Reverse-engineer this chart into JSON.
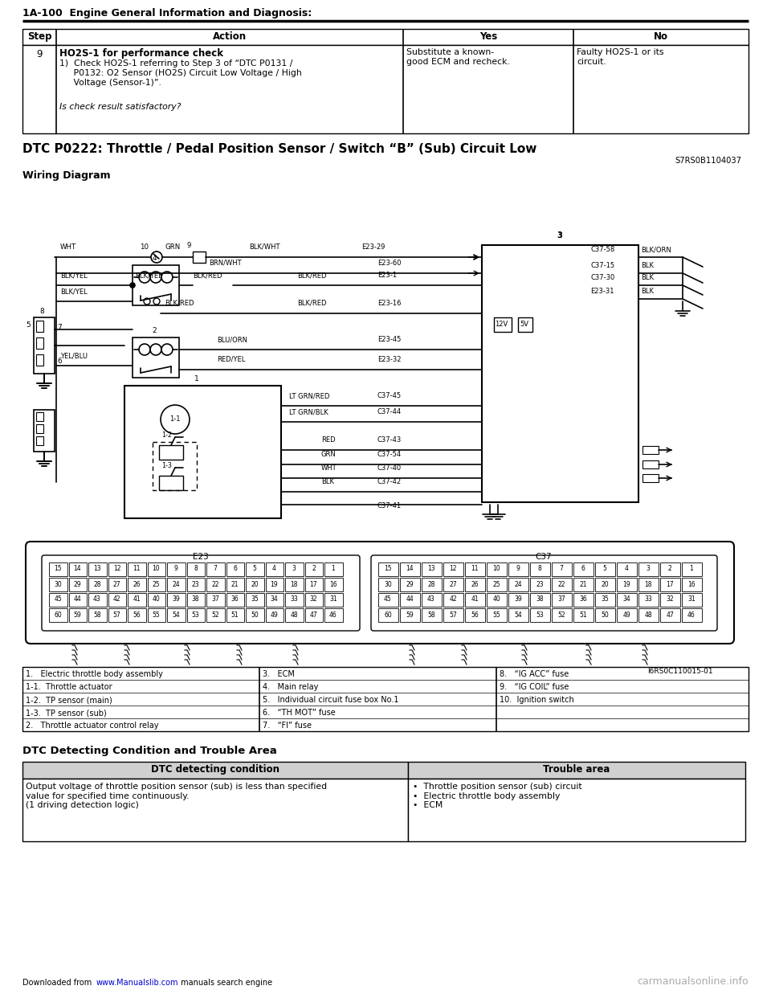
{
  "page_title": "1A-100  Engine General Information and Diagnosis:",
  "dtc_title": "DTC P0222: Throttle / Pedal Position Sensor / Switch “B” (Sub) Circuit Low",
  "dtc_code": "S7RS0B1104037",
  "wiring_title": "Wiring Diagram",
  "step": "9",
  "action_bold": "HO2S-1 for performance check",
  "action_line1": "1)  Check HO2S-1 referring to Step 3 of “DTC P0131 /",
  "action_line2": "     P0132: O2 Sensor (HO2S) Circuit Low Voltage / High",
  "action_line3": "     Voltage (Sensor-1)”.",
  "action_italic": "Is check result satisfactory?",
  "yes_text": "Substitute a known-\ngood ECM and recheck.",
  "no_text": "Faulty HO2S-1 or its\ncircuit.",
  "legend_col1": [
    "1.   Electric throttle body assembly",
    "1-1.  Throttle actuator",
    "1-2.  TP sensor (main)",
    "1-3.  TP sensor (sub)",
    "2.   Throttle actuator control relay"
  ],
  "legend_col2": [
    "3.   ECM",
    "4.   Main relay",
    "5.   Individual circuit fuse box No.1",
    "6.   “TH MOT” fuse",
    "7.   “FI” fuse"
  ],
  "legend_col3": [
    "8.   “IG ACC” fuse",
    "9.   “IG COIL” fuse",
    "10.  Ignition switch"
  ],
  "dtc_area_title": "DTC Detecting Condition and Trouble Area",
  "dtc_col1_hdr": "DTC detecting condition",
  "dtc_col2_hdr": "Trouble area",
  "dtc_condition": "Output voltage of throttle position sensor (sub) is less than specified\nvalue for specified time continuously.\n(1 driving detection logic)",
  "dtc_trouble": "•  Throttle position sensor (sub) circuit\n•  Electric throttle body assembly\n•  ECM",
  "diagram_ref": "I6RS0C110015-01",
  "footer_link": "www.Manualslib.com",
  "footer_right": "carmanualsonline.info",
  "bg": "#ffffff"
}
